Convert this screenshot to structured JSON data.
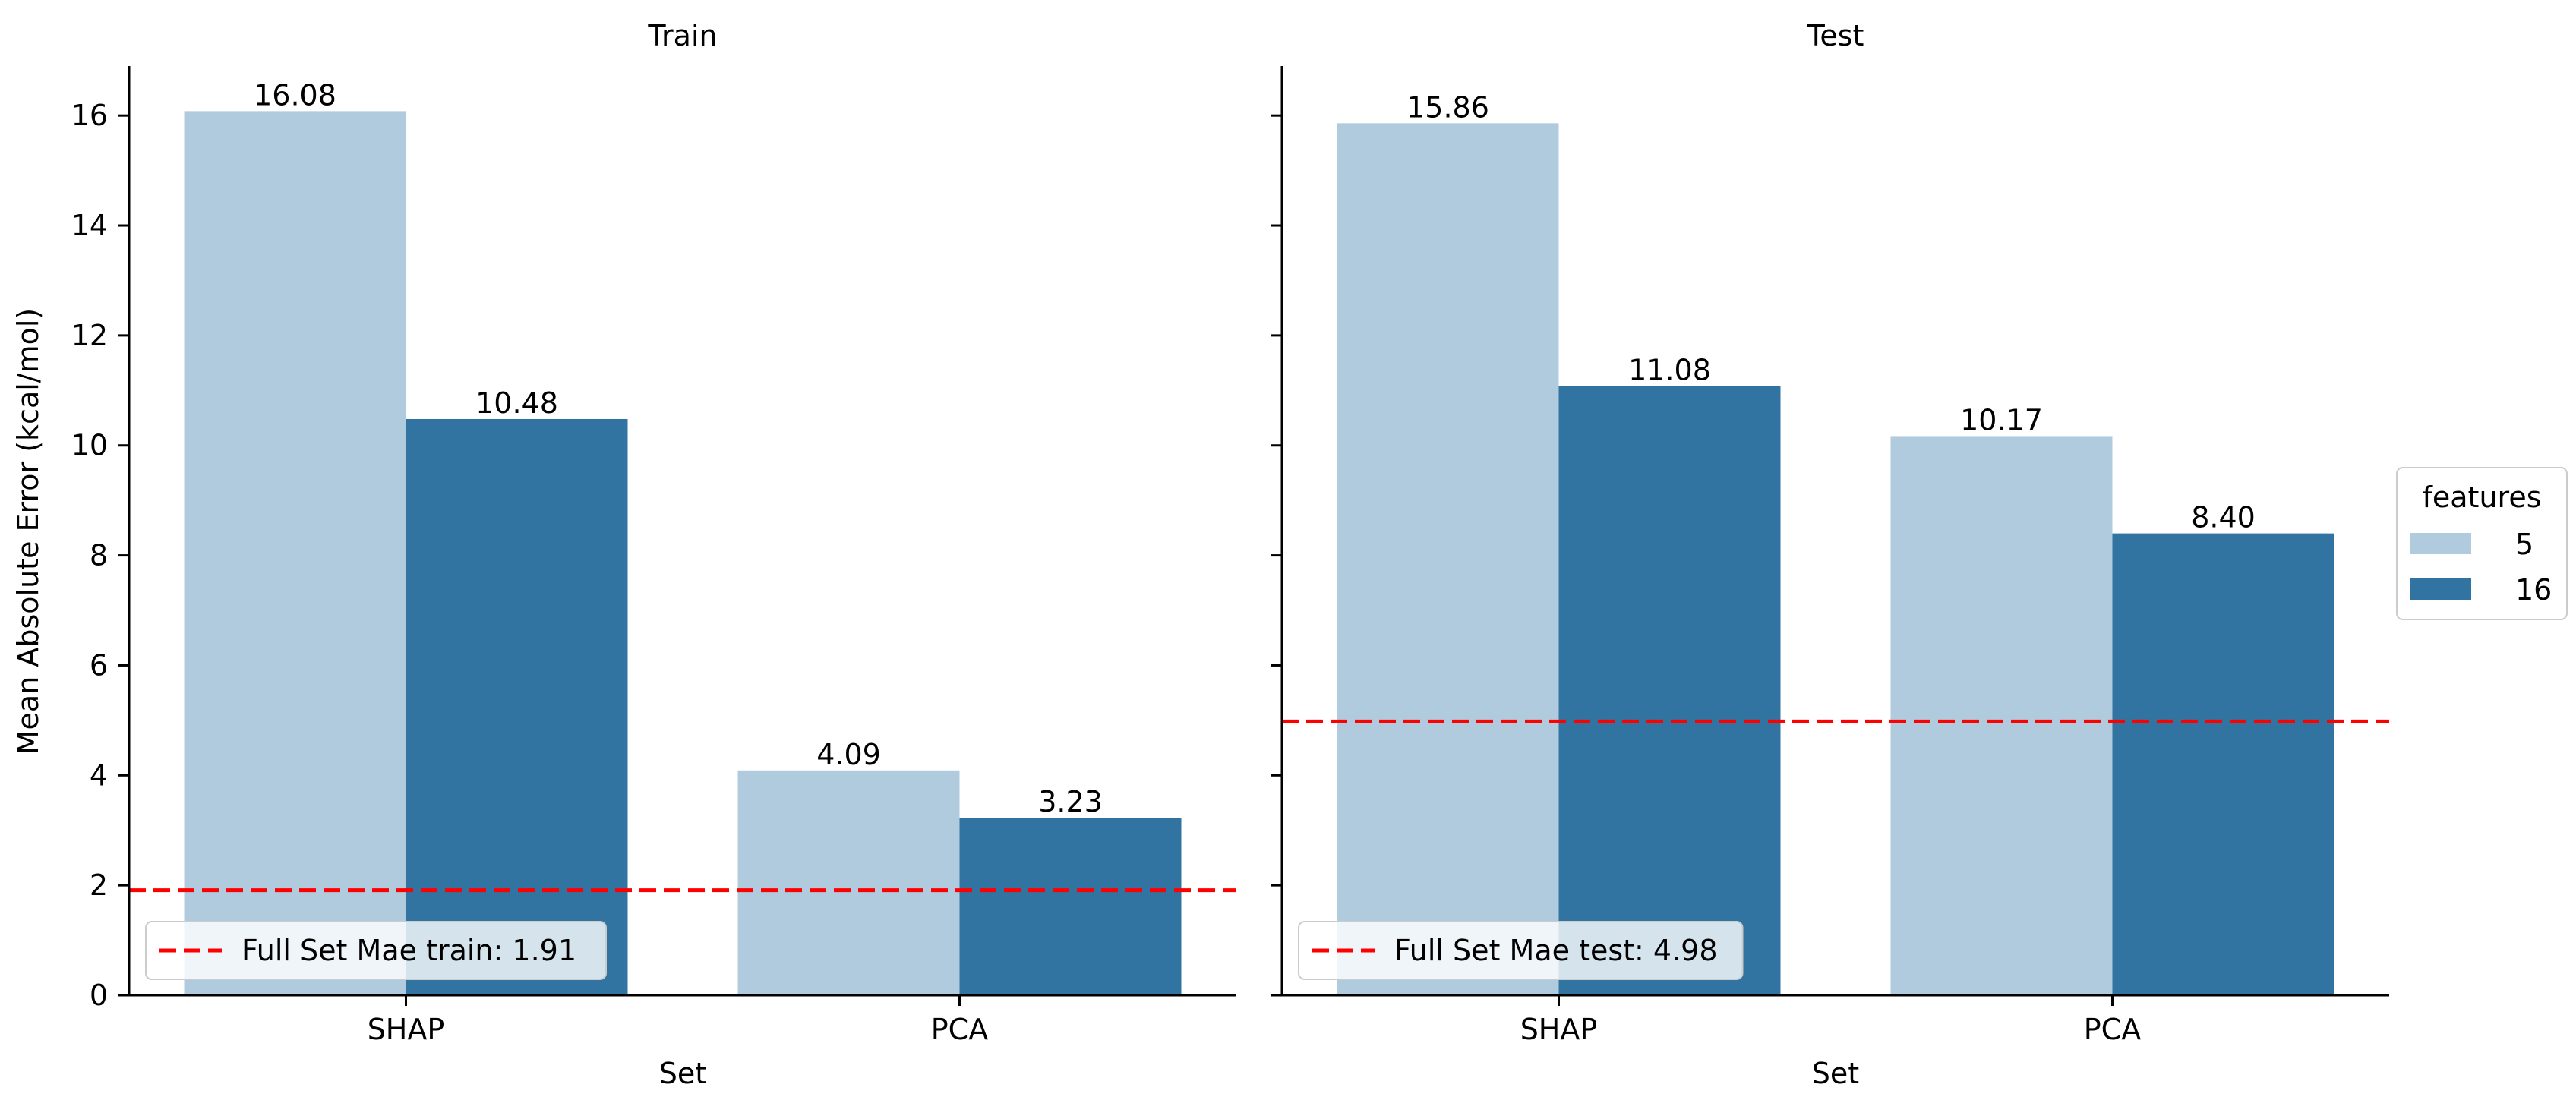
{
  "colors": {
    "five": "#b0cbdd",
    "sixteen": "#3174a1",
    "reference_line": "#ff0000",
    "axis": "#000000"
  },
  "legend": {
    "title": "features",
    "entries": [
      {
        "label": "5",
        "color_key": "five"
      },
      {
        "label": "16",
        "color_key": "sixteen"
      }
    ],
    "placement": "right-center outside"
  },
  "shared_axes": {
    "ylabel": "Mean Absolute Error (kcal/mol)",
    "xlabel": "Set",
    "ylim": [
      0,
      16.9
    ],
    "yticks": [
      0,
      2,
      4,
      6,
      8,
      10,
      12,
      14,
      16
    ],
    "categories": [
      "SHAP",
      "PCA"
    ]
  },
  "chart_data": [
    {
      "type": "bar",
      "title": "Train",
      "xlabel": "Set",
      "ylabel": "Mean Absolute Error (kcal/mol)",
      "categories": [
        "SHAP",
        "PCA"
      ],
      "series": [
        {
          "name": "5",
          "values": [
            16.08,
            4.09
          ],
          "labels": [
            "16.08",
            "4.09"
          ]
        },
        {
          "name": "16",
          "values": [
            10.48,
            3.23
          ],
          "labels": [
            "10.48",
            "3.23"
          ]
        }
      ],
      "reference_line": {
        "value": 1.91,
        "label": "Full Set Mae train: 1.91",
        "style": "dashed"
      },
      "ylim": [
        0,
        16.9
      ],
      "grid": false
    },
    {
      "type": "bar",
      "title": "Test",
      "xlabel": "Set",
      "ylabel": "",
      "categories": [
        "SHAP",
        "PCA"
      ],
      "series": [
        {
          "name": "5",
          "values": [
            15.86,
            10.17
          ],
          "labels": [
            "15.86",
            "10.17"
          ]
        },
        {
          "name": "16",
          "values": [
            11.08,
            8.4
          ],
          "labels": [
            "11.08",
            "8.40"
          ]
        }
      ],
      "reference_line": {
        "value": 4.98,
        "label": "Full Set Mae test: 4.98",
        "style": "dashed"
      },
      "ylim": [
        0,
        16.9
      ],
      "grid": false
    }
  ]
}
